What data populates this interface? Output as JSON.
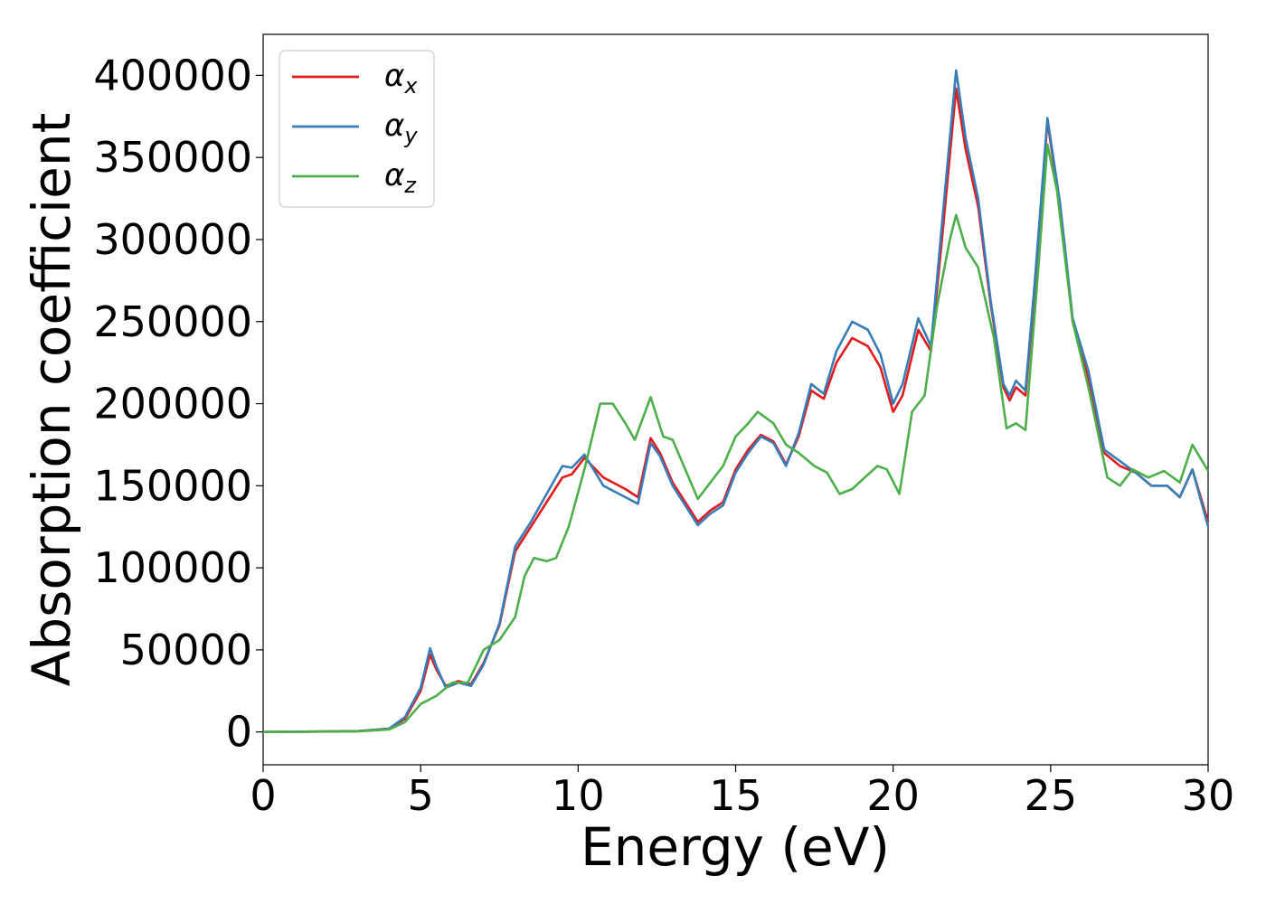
{
  "chart_data": {
    "type": "line",
    "title": "",
    "xlabel": "Energy (eV)",
    "ylabel": "Absorption coefficient",
    "xlim": [
      0,
      30
    ],
    "ylim": [
      -20000,
      425000
    ],
    "x_ticks": [
      "0",
      "5",
      "10",
      "15",
      "20",
      "25",
      "30"
    ],
    "y_ticks": [
      "0",
      "50000",
      "100000",
      "150000",
      "200000",
      "250000",
      "300000",
      "350000",
      "400000"
    ],
    "grid": false,
    "legend_position": "top-left",
    "series": [
      {
        "name": "α",
        "subscript": "x",
        "color": "#e41a1c",
        "points": [
          [
            0,
            0
          ],
          [
            3,
            500
          ],
          [
            4,
            2000
          ],
          [
            4.5,
            8000
          ],
          [
            5,
            25000
          ],
          [
            5.3,
            47000
          ],
          [
            5.5,
            38000
          ],
          [
            5.8,
            28000
          ],
          [
            6.2,
            31000
          ],
          [
            6.6,
            29000
          ],
          [
            7,
            42000
          ],
          [
            7.5,
            65000
          ],
          [
            8,
            110000
          ],
          [
            8.5,
            125000
          ],
          [
            9,
            140000
          ],
          [
            9.5,
            155000
          ],
          [
            9.8,
            157000
          ],
          [
            10.2,
            167000
          ],
          [
            10.8,
            155000
          ],
          [
            11.5,
            148000
          ],
          [
            11.9,
            143000
          ],
          [
            12.3,
            179000
          ],
          [
            12.6,
            170000
          ],
          [
            13,
            152000
          ],
          [
            13.4,
            140000
          ],
          [
            13.8,
            128000
          ],
          [
            14.2,
            135000
          ],
          [
            14.6,
            140000
          ],
          [
            15,
            160000
          ],
          [
            15.4,
            172000
          ],
          [
            15.8,
            181000
          ],
          [
            16.2,
            177000
          ],
          [
            16.6,
            163000
          ],
          [
            17,
            180000
          ],
          [
            17.4,
            208000
          ],
          [
            17.8,
            203000
          ],
          [
            18.2,
            225000
          ],
          [
            18.7,
            240000
          ],
          [
            19.2,
            235000
          ],
          [
            19.6,
            222000
          ],
          [
            20,
            195000
          ],
          [
            20.3,
            205000
          ],
          [
            20.8,
            245000
          ],
          [
            21.2,
            232000
          ],
          [
            21.6,
            310000
          ],
          [
            22,
            392000
          ],
          [
            22.3,
            355000
          ],
          [
            22.7,
            320000
          ],
          [
            23.1,
            260000
          ],
          [
            23.5,
            210000
          ],
          [
            23.7,
            202000
          ],
          [
            23.9,
            210000
          ],
          [
            24.2,
            205000
          ],
          [
            24.5,
            270000
          ],
          [
            24.9,
            372000
          ],
          [
            25.3,
            320000
          ],
          [
            25.7,
            250000
          ],
          [
            26.2,
            215000
          ],
          [
            26.7,
            170000
          ],
          [
            27.2,
            162000
          ],
          [
            27.7,
            158000
          ],
          [
            28.2,
            150000
          ],
          [
            28.7,
            150000
          ],
          [
            29.1,
            143000
          ],
          [
            29.5,
            160000
          ],
          [
            30,
            128000
          ]
        ]
      },
      {
        "name": "α",
        "subscript": "y",
        "color": "#377eb8",
        "points": [
          [
            0,
            0
          ],
          [
            3,
            500
          ],
          [
            4,
            2000
          ],
          [
            4.5,
            9000
          ],
          [
            5,
            27000
          ],
          [
            5.3,
            51000
          ],
          [
            5.5,
            40000
          ],
          [
            5.8,
            27000
          ],
          [
            6.2,
            30000
          ],
          [
            6.6,
            28000
          ],
          [
            7,
            41000
          ],
          [
            7.5,
            66000
          ],
          [
            8,
            113000
          ],
          [
            8.5,
            128000
          ],
          [
            9,
            145000
          ],
          [
            9.5,
            162000
          ],
          [
            9.8,
            161000
          ],
          [
            10.2,
            169000
          ],
          [
            10.8,
            150000
          ],
          [
            11.5,
            143000
          ],
          [
            11.9,
            139000
          ],
          [
            12.3,
            176000
          ],
          [
            12.6,
            168000
          ],
          [
            13,
            150000
          ],
          [
            13.4,
            138000
          ],
          [
            13.8,
            126000
          ],
          [
            14.2,
            133000
          ],
          [
            14.6,
            138000
          ],
          [
            15,
            158000
          ],
          [
            15.4,
            170000
          ],
          [
            15.8,
            180000
          ],
          [
            16.2,
            176000
          ],
          [
            16.6,
            162000
          ],
          [
            17,
            182000
          ],
          [
            17.4,
            212000
          ],
          [
            17.8,
            206000
          ],
          [
            18.2,
            232000
          ],
          [
            18.7,
            250000
          ],
          [
            19.2,
            245000
          ],
          [
            19.6,
            230000
          ],
          [
            20,
            200000
          ],
          [
            20.3,
            212000
          ],
          [
            20.8,
            252000
          ],
          [
            21.2,
            235000
          ],
          [
            21.6,
            320000
          ],
          [
            22,
            403000
          ],
          [
            22.3,
            362000
          ],
          [
            22.7,
            325000
          ],
          [
            23.1,
            262000
          ],
          [
            23.5,
            212000
          ],
          [
            23.7,
            205000
          ],
          [
            23.9,
            214000
          ],
          [
            24.2,
            208000
          ],
          [
            24.5,
            275000
          ],
          [
            24.9,
            374000
          ],
          [
            25.3,
            322000
          ],
          [
            25.7,
            252000
          ],
          [
            26.2,
            220000
          ],
          [
            26.7,
            172000
          ],
          [
            27.2,
            165000
          ],
          [
            27.7,
            158000
          ],
          [
            28.2,
            150000
          ],
          [
            28.7,
            150000
          ],
          [
            29.1,
            143000
          ],
          [
            29.5,
            160000
          ],
          [
            30,
            125000
          ]
        ]
      },
      {
        "name": "α",
        "subscript": "z",
        "color": "#4daf4a",
        "points": [
          [
            0,
            0
          ],
          [
            3,
            300
          ],
          [
            4,
            1500
          ],
          [
            4.5,
            6000
          ],
          [
            5,
            17000
          ],
          [
            5.5,
            22000
          ],
          [
            6,
            30000
          ],
          [
            6.5,
            30000
          ],
          [
            7,
            50000
          ],
          [
            7.5,
            56000
          ],
          [
            8,
            70000
          ],
          [
            8.3,
            95000
          ],
          [
            8.6,
            106000
          ],
          [
            9,
            104000
          ],
          [
            9.3,
            106000
          ],
          [
            9.7,
            125000
          ],
          [
            10.2,
            160000
          ],
          [
            10.7,
            200000
          ],
          [
            11.1,
            200000
          ],
          [
            11.5,
            188000
          ],
          [
            11.8,
            178000
          ],
          [
            12.3,
            204000
          ],
          [
            12.7,
            180000
          ],
          [
            13,
            178000
          ],
          [
            13.4,
            160000
          ],
          [
            13.8,
            142000
          ],
          [
            14.2,
            152000
          ],
          [
            14.6,
            162000
          ],
          [
            15,
            180000
          ],
          [
            15.4,
            188000
          ],
          [
            15.7,
            195000
          ],
          [
            16.2,
            188000
          ],
          [
            16.6,
            175000
          ],
          [
            17,
            170000
          ],
          [
            17.5,
            162000
          ],
          [
            17.9,
            158000
          ],
          [
            18.3,
            145000
          ],
          [
            18.7,
            148000
          ],
          [
            19.1,
            155000
          ],
          [
            19.5,
            162000
          ],
          [
            19.8,
            160000
          ],
          [
            20.2,
            145000
          ],
          [
            20.6,
            195000
          ],
          [
            21,
            205000
          ],
          [
            21.4,
            260000
          ],
          [
            21.8,
            300000
          ],
          [
            22,
            315000
          ],
          [
            22.3,
            295000
          ],
          [
            22.7,
            283000
          ],
          [
            23.2,
            240000
          ],
          [
            23.6,
            185000
          ],
          [
            23.9,
            188000
          ],
          [
            24.2,
            184000
          ],
          [
            24.6,
            280000
          ],
          [
            24.9,
            358000
          ],
          [
            25.2,
            330000
          ],
          [
            25.7,
            250000
          ],
          [
            26.2,
            210000
          ],
          [
            26.8,
            155000
          ],
          [
            27.2,
            150000
          ],
          [
            27.6,
            160000
          ],
          [
            28.1,
            155000
          ],
          [
            28.6,
            159000
          ],
          [
            29.1,
            152000
          ],
          [
            29.5,
            175000
          ],
          [
            30,
            159000
          ]
        ]
      }
    ]
  }
}
